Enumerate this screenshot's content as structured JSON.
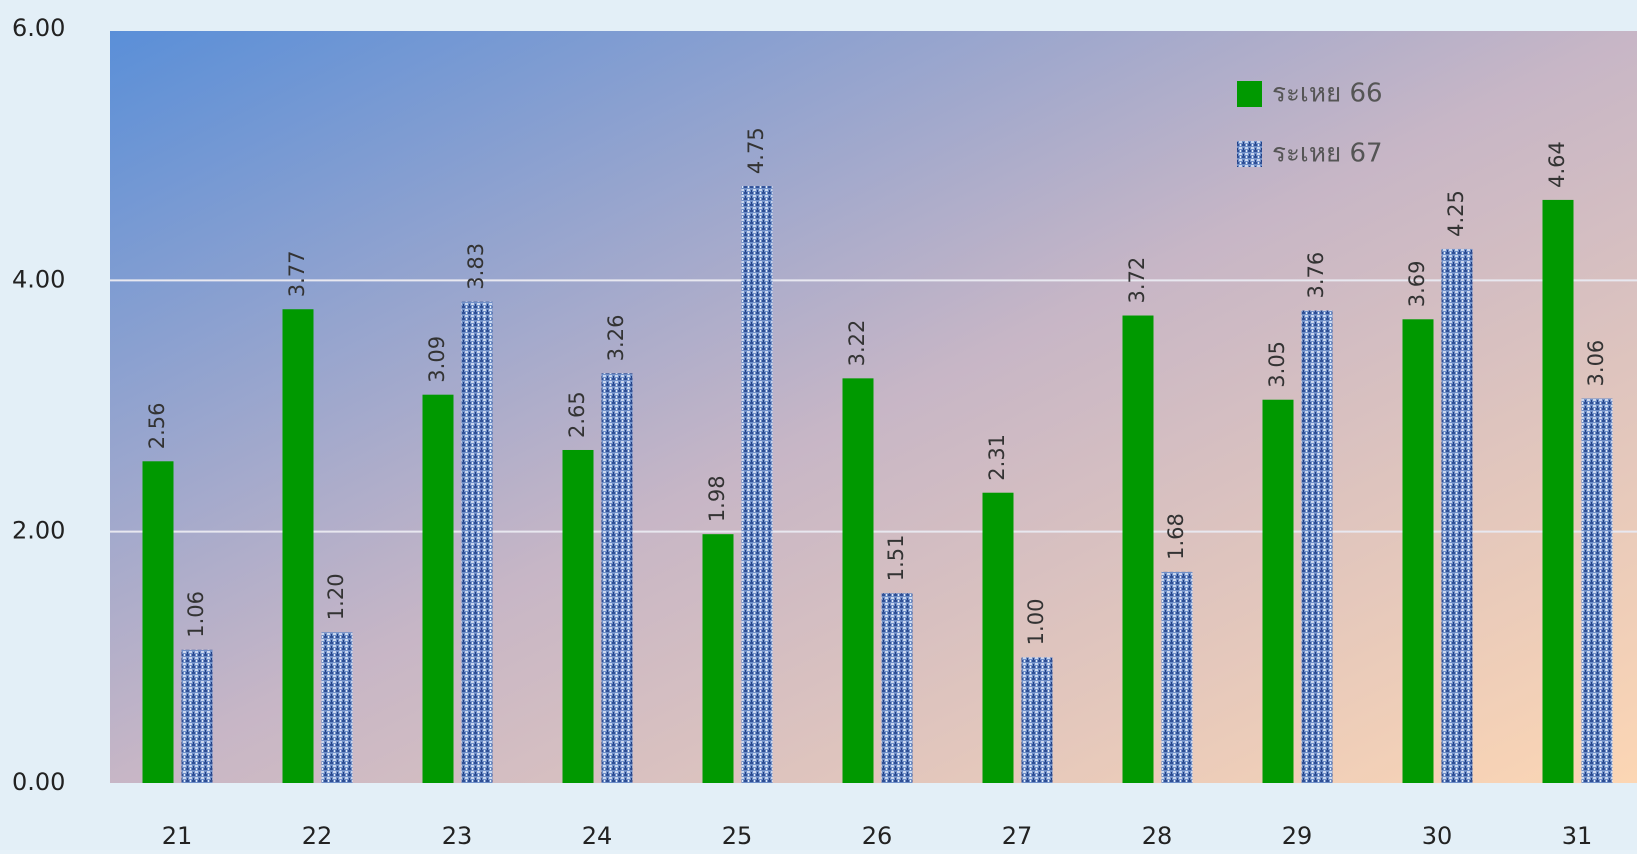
{
  "chart_data": {
    "type": "bar",
    "categories": [
      "21",
      "22",
      "23",
      "24",
      "25",
      "26",
      "27",
      "28",
      "29",
      "30",
      "31"
    ],
    "series": [
      {
        "name": "ระเหย 66",
        "color": "#009900",
        "values": [
          2.56,
          3.77,
          3.09,
          2.65,
          1.98,
          3.22,
          2.31,
          3.72,
          3.05,
          3.69,
          4.64
        ],
        "value_labels": [
          "2.56",
          "3.77",
          "3.09",
          "2.65",
          "1.98",
          "3.22",
          "2.31",
          "3.72",
          "3.05",
          "3.69",
          "4.64"
        ]
      },
      {
        "name": "ระเหย 67",
        "color": "#4a6fb0",
        "values": [
          1.06,
          1.2,
          3.83,
          3.26,
          4.75,
          1.51,
          1.0,
          1.68,
          3.76,
          4.25,
          3.06
        ],
        "value_labels": [
          "1.06",
          "1.20",
          "3.83",
          "3.26",
          "4.75",
          "1.51",
          "1.00",
          "1.68",
          "3.76",
          "4.25",
          "3.06"
        ]
      }
    ],
    "ylim": [
      0,
      6
    ],
    "yticks": [
      {
        "value": 0,
        "label": "0.00"
      },
      {
        "value": 2,
        "label": "2.00"
      },
      {
        "value": 4,
        "label": "4.00"
      },
      {
        "value": 6,
        "label": "6.00"
      }
    ],
    "grid": true,
    "legend": "top-right"
  }
}
